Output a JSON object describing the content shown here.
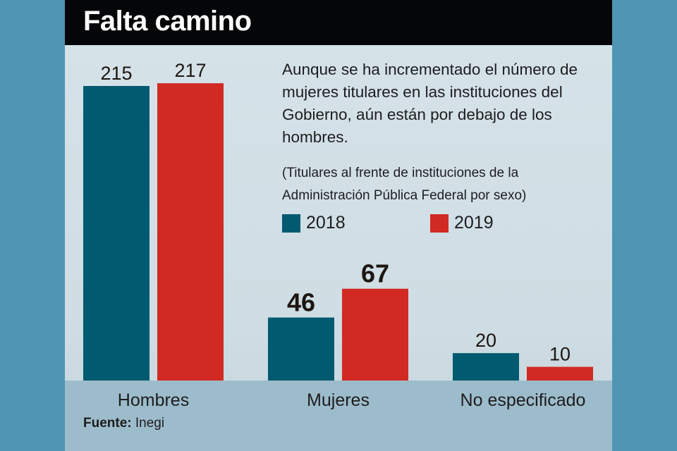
{
  "title": "Falta camino",
  "description": "Aunque se ha incrementado el número de mujeres titulares en las instituciones del Gobierno, aún están por debajo de los hombres.",
  "subtitle": "(Titulares al frente de instituciones de la Administración Pública Federal por sexo)",
  "source_label": "Fuente:",
  "source_value": "Inegi",
  "colors": {
    "2018": "#005a70",
    "2019": "#d12a22"
  },
  "chart_data": {
    "type": "bar",
    "title": "Falta camino",
    "xlabel": "",
    "ylabel": "",
    "categories": [
      "Hombres",
      "Mujeres",
      "No especificado"
    ],
    "series": [
      {
        "name": "2018",
        "values": [
          215,
          46,
          20
        ]
      },
      {
        "name": "2019",
        "values": [
          217,
          67,
          10
        ]
      }
    ],
    "ylim": [
      0,
      217
    ],
    "grid": false,
    "legend": "top-right"
  }
}
